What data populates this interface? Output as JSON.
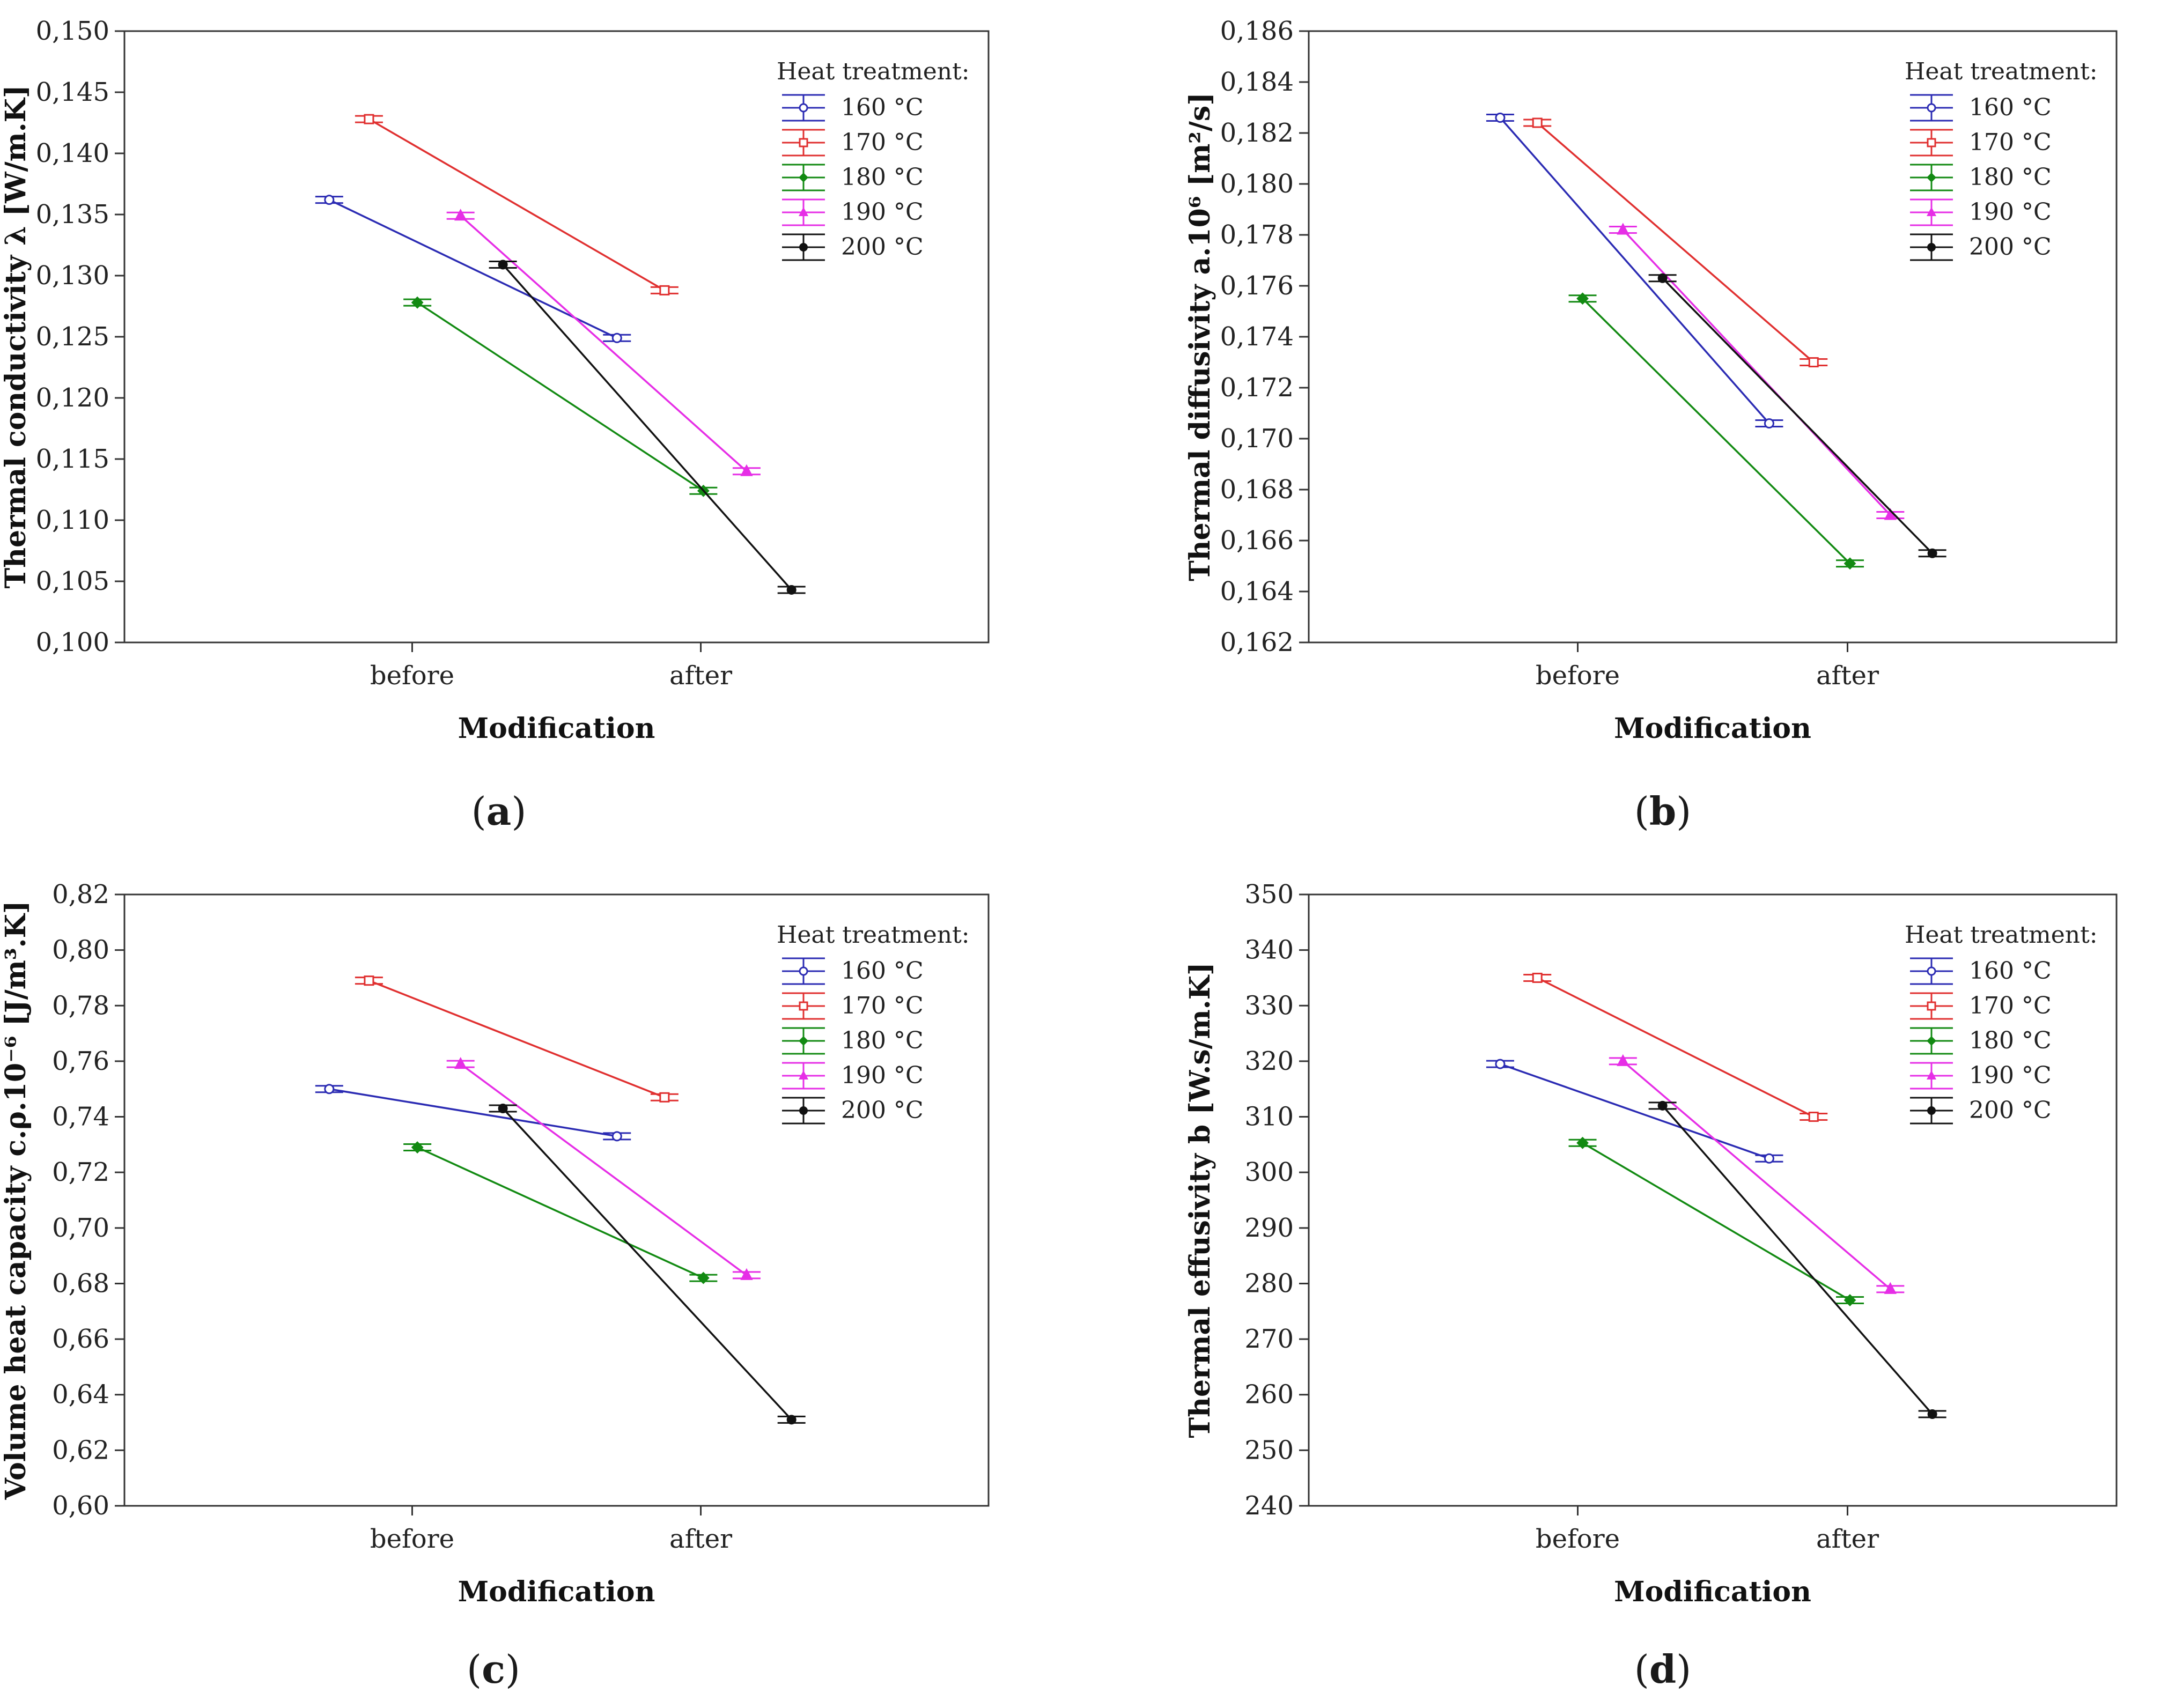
{
  "x_axis_label": "Modification",
  "legend_title": "Heat treatment:",
  "series_colors": {
    "160 °C": "#2b2bb3",
    "170 °C": "#e03030",
    "180 °C": "#128a12",
    "190 °C": "#e62ee6",
    "200 °C": "#111111"
  },
  "chart_data": [
    {
      "type": "line",
      "panel": "a",
      "caption": "a",
      "ylabel": "Thermal conductivity λ [W/m.K]",
      "xlabel": "Modification",
      "categories": [
        "before",
        "after"
      ],
      "ylim": [
        0.1,
        0.15
      ],
      "yticks": [
        "0,100",
        "0,105",
        "0,110",
        "0,115",
        "0,120",
        "0,125",
        "0,130",
        "0,135",
        "0,140",
        "0,145",
        "0,150"
      ],
      "series": [
        {
          "name": "160 °C",
          "values": [
            0.1362,
            0.1249
          ]
        },
        {
          "name": "170 °C",
          "values": [
            0.1428,
            0.1288
          ]
        },
        {
          "name": "180 °C",
          "values": [
            0.1278,
            0.1124
          ]
        },
        {
          "name": "190 °C",
          "values": [
            0.1349,
            0.114
          ]
        },
        {
          "name": "200 °C",
          "values": [
            0.1309,
            0.1043
          ]
        }
      ]
    },
    {
      "type": "line",
      "panel": "b",
      "caption": "b",
      "ylabel": "Thermal diffusivity a.10⁶ [m²/s]",
      "xlabel": "Modification",
      "categories": [
        "before",
        "after"
      ],
      "ylim": [
        0.162,
        0.186
      ],
      "yticks": [
        "0,162",
        "0,164",
        "0,166",
        "0,168",
        "0,170",
        "0,172",
        "0,174",
        "0,176",
        "0,178",
        "0,180",
        "0,182",
        "0,184",
        "0,186"
      ],
      "series": [
        {
          "name": "160 °C",
          "values": [
            0.1826,
            0.1706
          ]
        },
        {
          "name": "170 °C",
          "values": [
            0.1824,
            0.173
          ]
        },
        {
          "name": "180 °C",
          "values": [
            0.1755,
            0.1651
          ]
        },
        {
          "name": "190 °C",
          "values": [
            0.1782,
            0.167
          ]
        },
        {
          "name": "200 °C",
          "values": [
            0.1763,
            0.1655
          ]
        }
      ]
    },
    {
      "type": "line",
      "panel": "c",
      "caption": "c",
      "ylabel": "Volume heat capacity c.ρ.10⁻⁶ [J/m³.K]",
      "xlabel": "Modification",
      "categories": [
        "before",
        "after"
      ],
      "ylim": [
        0.6,
        0.82
      ],
      "yticks": [
        "0,60",
        "0,62",
        "0,64",
        "0,66",
        "0,68",
        "0,70",
        "0,72",
        "0,74",
        "0,76",
        "0,78",
        "0,80",
        "0,82"
      ],
      "series": [
        {
          "name": "160 °C",
          "values": [
            0.75,
            0.733
          ]
        },
        {
          "name": "170 °C",
          "values": [
            0.789,
            0.747
          ]
        },
        {
          "name": "180 °C",
          "values": [
            0.729,
            0.682
          ]
        },
        {
          "name": "190 °C",
          "values": [
            0.759,
            0.683
          ]
        },
        {
          "name": "200 °C",
          "values": [
            0.743,
            0.631
          ]
        }
      ]
    },
    {
      "type": "line",
      "panel": "d",
      "caption": "d",
      "ylabel": "Thermal effusivity b [W.s/m.K]",
      "xlabel": "Modification",
      "categories": [
        "before",
        "after"
      ],
      "ylim": [
        240,
        350
      ],
      "yticks": [
        "240",
        "250",
        "260",
        "270",
        "280",
        "290",
        "300",
        "310",
        "320",
        "330",
        "340",
        "350"
      ],
      "series": [
        {
          "name": "160 °C",
          "values": [
            319.5,
            302.5
          ]
        },
        {
          "name": "170 °C",
          "values": [
            335.0,
            310.0
          ]
        },
        {
          "name": "180 °C",
          "values": [
            305.3,
            277.0
          ]
        },
        {
          "name": "190 °C",
          "values": [
            320.0,
            279.0
          ]
        },
        {
          "name": "200 °C",
          "values": [
            312.0,
            256.5
          ]
        }
      ]
    }
  ]
}
